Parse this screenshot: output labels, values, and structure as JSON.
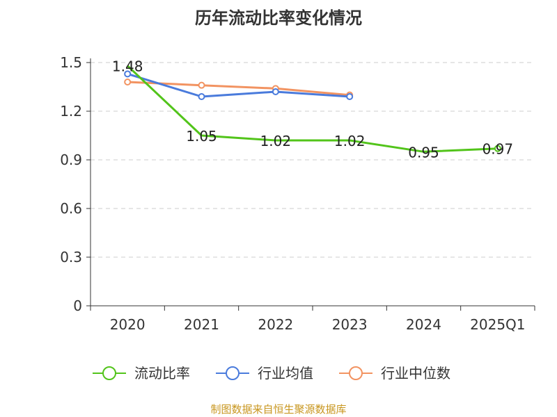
{
  "chart_data": {
    "type": "line",
    "title": "历年流动比率变化情况",
    "categories": [
      "2020",
      "2021",
      "2022",
      "2023",
      "2024",
      "2025Q1"
    ],
    "y_ticks": [
      "0",
      "0.3",
      "0.6",
      "0.9",
      "1.2",
      "1.5"
    ],
    "ylim": [
      0,
      1.5
    ],
    "grid": "horizontal-dashed",
    "legend_position": "bottom",
    "series": [
      {
        "name": "流动比率",
        "color": "#52c41a",
        "values": [
          1.48,
          1.05,
          1.02,
          1.02,
          0.95,
          0.97
        ],
        "labels": [
          "1.48",
          "1.05",
          "1.02",
          "1.02",
          "0.95",
          "0.97"
        ],
        "marker_last_only": true
      },
      {
        "name": "行业均值",
        "color": "#4a7bdc",
        "values": [
          1.43,
          1.29,
          1.32,
          1.29,
          null,
          null
        ]
      },
      {
        "name": "行业中位数",
        "color": "#f29361",
        "values": [
          1.38,
          1.36,
          1.34,
          1.3,
          null,
          null
        ]
      }
    ]
  },
  "source_note": "制图数据来自恒生聚源数据库"
}
